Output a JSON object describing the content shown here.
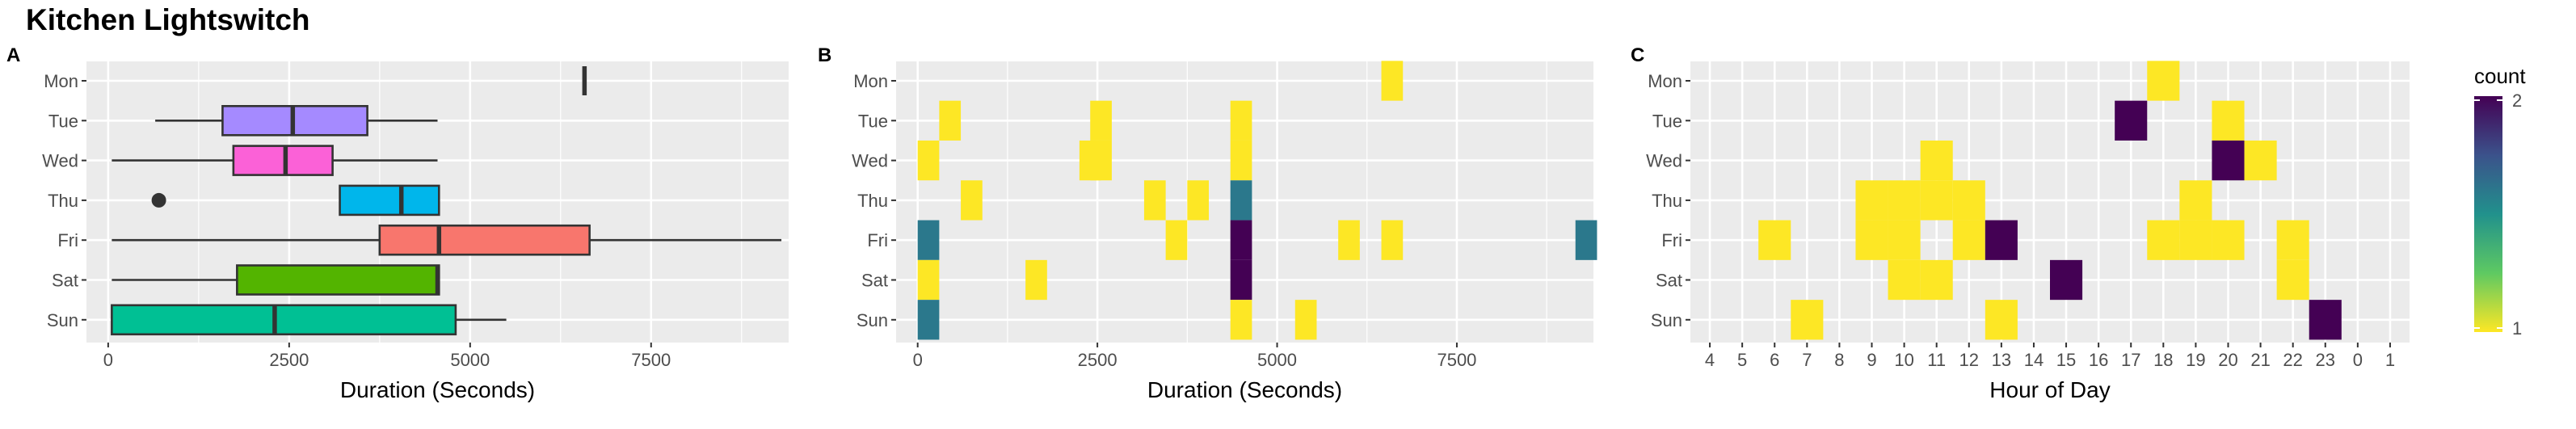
{
  "title": "Kitchen Lightswitch",
  "colors": {
    "panel_bg": "#EBEBEB",
    "grid": "#FFFFFF",
    "viridis_low": "#FDE725",
    "viridis_high": "#440154",
    "tick_text": "#4D4D4D"
  },
  "chart_data": [
    {
      "panel": "A",
      "type": "boxplot",
      "orientation": "horizontal",
      "xlabel": "Duration (Seconds)",
      "ylabel": "",
      "xlim": [
        -300,
        9400
      ],
      "xticks": [
        0,
        2500,
        5000,
        7500
      ],
      "categories": [
        "Mon",
        "Tue",
        "Wed",
        "Thu",
        "Fri",
        "Sat",
        "Sun"
      ],
      "boxes": [
        {
          "day": "Mon",
          "min": 6580,
          "q1": 6580,
          "median": 6580,
          "q3": 6580,
          "max": 6580,
          "outliers": [],
          "color": "#C77CFF"
        },
        {
          "day": "Tue",
          "min": 650,
          "q1": 1580,
          "median": 2550,
          "q3": 3580,
          "max": 4550,
          "outliers": [],
          "color": "#A58AFF"
        },
        {
          "day": "Wed",
          "min": 50,
          "q1": 1730,
          "median": 2450,
          "q3": 3100,
          "max": 4550,
          "outliers": [],
          "color": "#FB61D7"
        },
        {
          "day": "Thu",
          "min": 3200,
          "q1": 3200,
          "median": 4050,
          "q3": 4570,
          "max": 4570,
          "outliers": [
            700
          ],
          "color": "#00B6EB"
        },
        {
          "day": "Fri",
          "min": 50,
          "q1": 3750,
          "median": 4570,
          "q3": 6650,
          "max": 9300,
          "outliers": [],
          "color": "#F8766D"
        },
        {
          "day": "Sat",
          "min": 50,
          "q1": 1780,
          "median": 4550,
          "q3": 4570,
          "max": 4570,
          "outliers": [],
          "color": "#53B400"
        },
        {
          "day": "Sun",
          "min": 50,
          "q1": 50,
          "median": 2300,
          "q3": 4800,
          "max": 5500,
          "outliers": [],
          "color": "#00C094"
        }
      ]
    },
    {
      "panel": "B",
      "type": "heatmap",
      "xlabel": "Duration (Seconds)",
      "ylabel": "",
      "xlim": [
        -300,
        9400
      ],
      "xticks": [
        0,
        2500,
        5000,
        7500
      ],
      "bin_width": 300,
      "categories": [
        "Mon",
        "Tue",
        "Wed",
        "Thu",
        "Fri",
        "Sat",
        "Sun"
      ],
      "cells": [
        {
          "day": "Mon",
          "x": 6600,
          "count": 1
        },
        {
          "day": "Tue",
          "x": 450,
          "count": 1
        },
        {
          "day": "Tue",
          "x": 2550,
          "count": 1
        },
        {
          "day": "Tue",
          "x": 4500,
          "count": 1
        },
        {
          "day": "Wed",
          "x": 150,
          "count": 1
        },
        {
          "day": "Wed",
          "x": 2400,
          "count": 1
        },
        {
          "day": "Wed",
          "x": 2550,
          "count": 1
        },
        {
          "day": "Wed",
          "x": 4500,
          "count": 1
        },
        {
          "day": "Thu",
          "x": 750,
          "count": 1
        },
        {
          "day": "Thu",
          "x": 3300,
          "count": 1
        },
        {
          "day": "Thu",
          "x": 3900,
          "count": 1
        },
        {
          "day": "Thu",
          "x": 4500,
          "count": 1.6
        },
        {
          "day": "Fri",
          "x": 150,
          "count": 1.6
        },
        {
          "day": "Fri",
          "x": 3600,
          "count": 1
        },
        {
          "day": "Fri",
          "x": 4500,
          "count": 2
        },
        {
          "day": "Fri",
          "x": 6000,
          "count": 1
        },
        {
          "day": "Fri",
          "x": 6600,
          "count": 1
        },
        {
          "day": "Fri",
          "x": 9300,
          "count": 1.6
        },
        {
          "day": "Sat",
          "x": 150,
          "count": 1
        },
        {
          "day": "Sat",
          "x": 1650,
          "count": 1
        },
        {
          "day": "Sat",
          "x": 4500,
          "count": 2
        },
        {
          "day": "Sun",
          "x": 150,
          "count": 1.6
        },
        {
          "day": "Sun",
          "x": 4500,
          "count": 1
        },
        {
          "day": "Sun",
          "x": 5400,
          "count": 1
        }
      ]
    },
    {
      "panel": "C",
      "type": "heatmap",
      "xlabel": "Hour of Day",
      "ylabel": "",
      "hours": [
        "4",
        "5",
        "6",
        "7",
        "8",
        "9",
        "10",
        "11",
        "12",
        "13",
        "14",
        "15",
        "16",
        "17",
        "18",
        "19",
        "20",
        "21",
        "22",
        "23",
        "0",
        "1"
      ],
      "categories": [
        "Mon",
        "Tue",
        "Wed",
        "Thu",
        "Fri",
        "Sat",
        "Sun"
      ],
      "cells": [
        {
          "day": "Mon",
          "hour": "18",
          "count": 1
        },
        {
          "day": "Tue",
          "hour": "17",
          "count": 2
        },
        {
          "day": "Tue",
          "hour": "20",
          "count": 1
        },
        {
          "day": "Wed",
          "hour": "11",
          "count": 1
        },
        {
          "day": "Wed",
          "hour": "20",
          "count": 2
        },
        {
          "day": "Wed",
          "hour": "21",
          "count": 1
        },
        {
          "day": "Thu",
          "hour": "9",
          "count": 1
        },
        {
          "day": "Thu",
          "hour": "10",
          "count": 1
        },
        {
          "day": "Thu",
          "hour": "11",
          "count": 1
        },
        {
          "day": "Thu",
          "hour": "12",
          "count": 1
        },
        {
          "day": "Thu",
          "hour": "19",
          "count": 1
        },
        {
          "day": "Fri",
          "hour": "6",
          "count": 1
        },
        {
          "day": "Fri",
          "hour": "9",
          "count": 1
        },
        {
          "day": "Fri",
          "hour": "10",
          "count": 1
        },
        {
          "day": "Fri",
          "hour": "12",
          "count": 1
        },
        {
          "day": "Fri",
          "hour": "13",
          "count": 2
        },
        {
          "day": "Fri",
          "hour": "18",
          "count": 1
        },
        {
          "day": "Fri",
          "hour": "19",
          "count": 1
        },
        {
          "day": "Fri",
          "hour": "20",
          "count": 1
        },
        {
          "day": "Fri",
          "hour": "22",
          "count": 1
        },
        {
          "day": "Sat",
          "hour": "10",
          "count": 1
        },
        {
          "day": "Sat",
          "hour": "11",
          "count": 1
        },
        {
          "day": "Sat",
          "hour": "15",
          "count": 2
        },
        {
          "day": "Sat",
          "hour": "22",
          "count": 1
        },
        {
          "day": "Sun",
          "hour": "7",
          "count": 1
        },
        {
          "day": "Sun",
          "hour": "13",
          "count": 1
        },
        {
          "day": "Sun",
          "hour": "23",
          "count": 2
        }
      ],
      "legend": {
        "title": "count",
        "min": 1,
        "max": 2,
        "ticks": [
          "1",
          "2"
        ],
        "position": "right"
      }
    }
  ]
}
